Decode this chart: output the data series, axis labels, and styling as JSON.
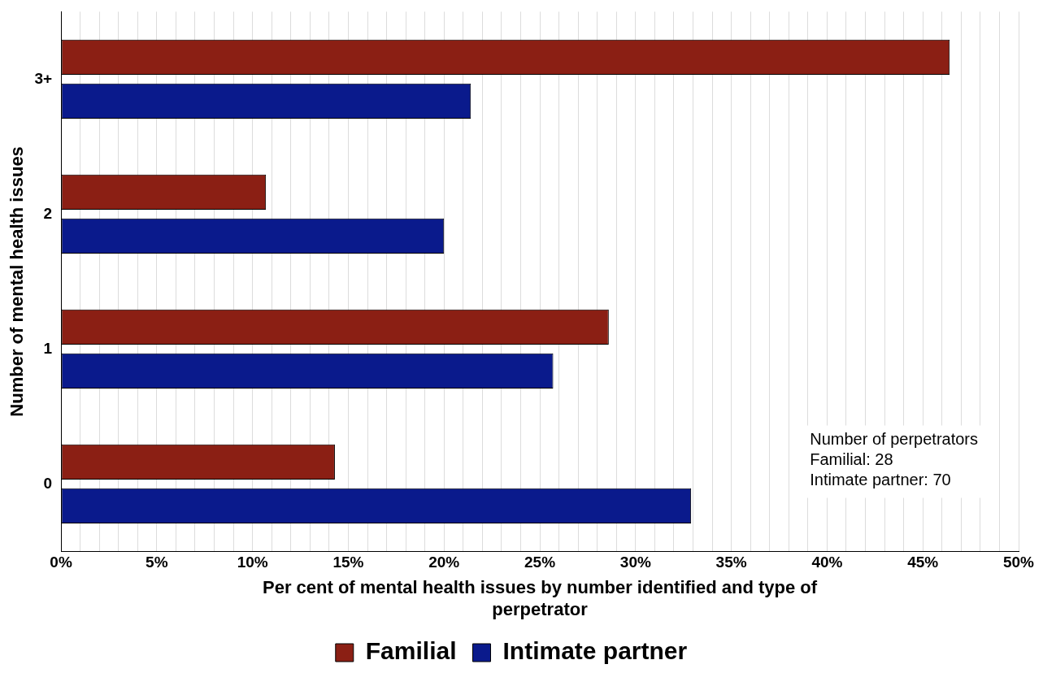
{
  "chart_data": {
    "type": "bar",
    "orientation": "horizontal",
    "categories": [
      "3+",
      "2",
      "1",
      "0"
    ],
    "series": [
      {
        "name": "Familial",
        "color": "#8b1f14",
        "values": [
          46.4,
          10.7,
          28.6,
          14.3
        ]
      },
      {
        "name": "Intimate partner",
        "color": "#0a1a8c",
        "values": [
          21.4,
          20,
          25.7,
          32.9
        ]
      }
    ],
    "xlim": [
      0,
      50
    ],
    "xticks": [
      {
        "value": 0,
        "label": "0%"
      },
      {
        "value": 1,
        "label": null
      },
      {
        "value": 2,
        "label": null
      },
      {
        "value": 3,
        "label": null
      },
      {
        "value": 4,
        "label": null
      },
      {
        "value": 5,
        "label": "5%"
      },
      {
        "value": 6,
        "label": null
      },
      {
        "value": 7,
        "label": null
      },
      {
        "value": 8,
        "label": null
      },
      {
        "value": 9,
        "label": null
      },
      {
        "value": 10,
        "label": "10%"
      },
      {
        "value": 11,
        "label": null
      },
      {
        "value": 12,
        "label": null
      },
      {
        "value": 13,
        "label": null
      },
      {
        "value": 14,
        "label": null
      },
      {
        "value": 15,
        "label": "15%"
      },
      {
        "value": 16,
        "label": null
      },
      {
        "value": 17,
        "label": null
      },
      {
        "value": 18,
        "label": null
      },
      {
        "value": 19,
        "label": null
      },
      {
        "value": 20,
        "label": "20%"
      },
      {
        "value": 21,
        "label": null
      },
      {
        "value": 22,
        "label": null
      },
      {
        "value": 23,
        "label": null
      },
      {
        "value": 24,
        "label": null
      },
      {
        "value": 25,
        "label": "25%"
      },
      {
        "value": 26,
        "label": null
      },
      {
        "value": 27,
        "label": null
      },
      {
        "value": 28,
        "label": null
      },
      {
        "value": 29,
        "label": null
      },
      {
        "value": 30,
        "label": "30%"
      },
      {
        "value": 31,
        "label": null
      },
      {
        "value": 32,
        "label": null
      },
      {
        "value": 33,
        "label": null
      },
      {
        "value": 34,
        "label": null
      },
      {
        "value": 35,
        "label": "35%"
      },
      {
        "value": 36,
        "label": null
      },
      {
        "value": 37,
        "label": null
      },
      {
        "value": 38,
        "label": null
      },
      {
        "value": 39,
        "label": null
      },
      {
        "value": 40,
        "label": "40%"
      },
      {
        "value": 41,
        "label": null
      },
      {
        "value": 42,
        "label": null
      },
      {
        "value": 43,
        "label": null
      },
      {
        "value": 44,
        "label": null
      },
      {
        "value": 45,
        "label": "45%"
      },
      {
        "value": 46,
        "label": null
      },
      {
        "value": 47,
        "label": null
      },
      {
        "value": 48,
        "label": null
      },
      {
        "value": 49,
        "label": null
      },
      {
        "value": 50,
        "label": "50%"
      }
    ],
    "xlabel": "Per cent of mental health issues by number identified and type of perpetrator",
    "ylabel": "Number of mental health issues",
    "annotations": [
      "Number of perpetrators",
      "Familial: 28",
      "Intimate partner: 70"
    ],
    "grid": "x",
    "legend": "bottom"
  }
}
